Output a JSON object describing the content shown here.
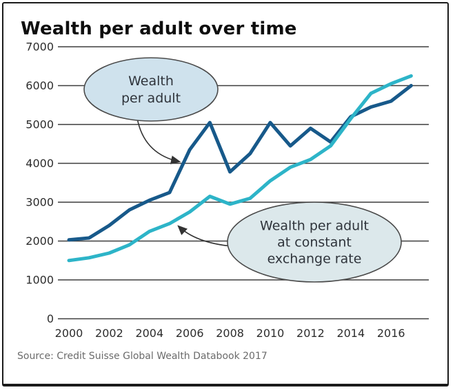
{
  "title": "Wealth per adult over time",
  "source": "Source: Credit Suisse Global Wealth Databook 2017",
  "chart_data": {
    "type": "line",
    "x": [
      2000,
      2001,
      2002,
      2003,
      2004,
      2005,
      2006,
      2007,
      2008,
      2009,
      2010,
      2011,
      2012,
      2013,
      2014,
      2015,
      2016,
      2017
    ],
    "series": [
      {
        "name": "Wealth per adult",
        "color": "#17598a",
        "values": [
          2030,
          2080,
          2400,
          2800,
          3050,
          3250,
          4350,
          5050,
          3780,
          4250,
          5050,
          4450,
          4900,
          4550,
          5200,
          5450,
          5600,
          6000
        ]
      },
      {
        "name": "Wealth per adult at constant exchange rate",
        "color": "#2db4c8",
        "values": [
          1500,
          1570,
          1690,
          1900,
          2250,
          2450,
          2750,
          3150,
          2950,
          3100,
          3550,
          3900,
          4100,
          4450,
          5150,
          5800,
          6050,
          6250
        ]
      }
    ],
    "ylim": [
      0,
      7000
    ],
    "yticks": [
      0,
      1000,
      2000,
      3000,
      4000,
      5000,
      6000,
      7000
    ],
    "xticks": [
      2000,
      2002,
      2004,
      2006,
      2008,
      2010,
      2012,
      2014,
      2016
    ],
    "grid": true,
    "legend_position": "callouts-on-plot",
    "annotations": [
      {
        "label_lines": [
          "Wealth",
          "per adult"
        ],
        "target_series": "Wealth per adult"
      },
      {
        "label_lines": [
          "Wealth per adult",
          "at constant",
          "exchange rate"
        ],
        "target_series": "Wealth per adult at constant exchange rate"
      }
    ]
  },
  "colors": {
    "grid": "#3d3d3d",
    "tick_text": "#2d2d2d",
    "callout_fill_1": "#cfe2ed",
    "callout_fill_2": "#dce8eb",
    "callout_stroke": "#4a4a4a",
    "callout_text": "#2f343b",
    "arrow": "#333333"
  }
}
